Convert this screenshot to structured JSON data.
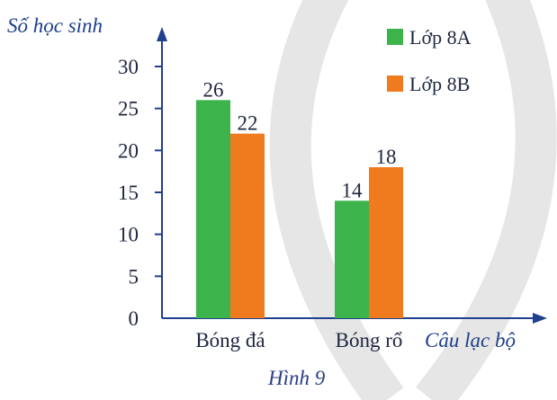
{
  "chart_data": {
    "type": "bar",
    "ylabel": "Số học sinh",
    "xlabel": "Câu lạc bộ",
    "caption": "Hình 9",
    "categories": [
      "Bóng đá",
      "Bóng rổ"
    ],
    "series": [
      {
        "name": "Lớp 8A",
        "color": "#3cb44b",
        "values": [
          26,
          14
        ]
      },
      {
        "name": "Lớp 8B",
        "color": "#f07a1e",
        "values": [
          22,
          18
        ]
      }
    ],
    "yticks": [
      0,
      5,
      10,
      15,
      20,
      25,
      30
    ],
    "ylim": [
      0,
      30
    ],
    "grid": false,
    "legend_position": "top-right",
    "data_labels": true
  }
}
